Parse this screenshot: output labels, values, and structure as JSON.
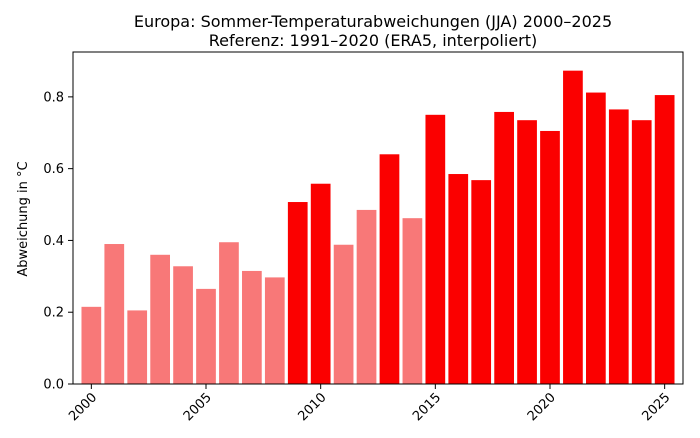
{
  "chart_data": {
    "type": "bar",
    "title": "Europa: Sommer-Temperaturabweichungen (JJA) 2000–2025",
    "subtitle": "Referenz: 1991–2020 (ERA5, interpoliert)",
    "xlabel": "",
    "ylabel": "Abweichung in °C",
    "x": [
      2000,
      2001,
      2002,
      2003,
      2004,
      2005,
      2006,
      2007,
      2008,
      2009,
      2010,
      2011,
      2012,
      2013,
      2014,
      2015,
      2016,
      2017,
      2018,
      2019,
      2020,
      2021,
      2022,
      2023,
      2024,
      2025
    ],
    "values": [
      0.215,
      0.39,
      0.205,
      0.36,
      0.328,
      0.265,
      0.395,
      0.315,
      0.297,
      0.507,
      0.558,
      0.388,
      0.485,
      0.64,
      0.462,
      0.75,
      0.585,
      0.568,
      0.758,
      0.735,
      0.705,
      0.873,
      0.812,
      0.765,
      0.735,
      0.805
    ],
    "bar_colors": [
      "#f87878",
      "#f87878",
      "#f87878",
      "#f87878",
      "#f87878",
      "#f87878",
      "#f87878",
      "#f87878",
      "#f87878",
      "#fb0000",
      "#fb0000",
      "#f87878",
      "#f87878",
      "#fb0000",
      "#f87878",
      "#fb0000",
      "#fb0000",
      "#fb0000",
      "#fb0000",
      "#fb0000",
      "#fb0000",
      "#fb0000",
      "#fb0000",
      "#fb0000",
      "#fb0000",
      "#fb0000"
    ],
    "xticks": [
      2000,
      2005,
      2010,
      2015,
      2020,
      2025
    ],
    "yticks": [
      0.0,
      0.2,
      0.4,
      0.6,
      0.8
    ],
    "ytick_labels": [
      "0.0",
      "0.2",
      "0.4",
      "0.6",
      "0.8"
    ],
    "xlim": [
      1999.2,
      2025.8
    ],
    "ylim": [
      0,
      0.925
    ],
    "grid": false
  }
}
